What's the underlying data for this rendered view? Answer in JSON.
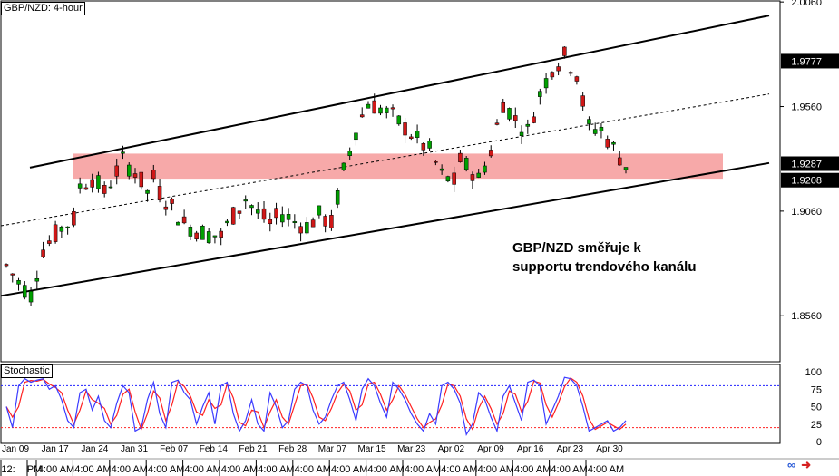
{
  "chart_title": "GBP/NZD: 4-hour",
  "indicator_title": "Stochastic",
  "annotation": {
    "line1": "GBP/NZD směřuje k",
    "line2": "supportu trendového kanálu"
  },
  "colors": {
    "bull_candle": "#00a000",
    "bear_candle": "#d01818",
    "support_zone": "#f7a9a9",
    "channel_line": "#000000",
    "stoch_main": "#3b3bff",
    "stoch_signal": "#ff2020",
    "level_80": "#2020ff",
    "level_20": "#ff2020",
    "price_label_bg": "#000000",
    "price_label_text": "#ffffff"
  },
  "chart_data": [
    {
      "type": "candlestick",
      "title": "GBP/NZD: 4-hour",
      "price_scale": {
        "ylim": [
          1.834,
          2.0065
        ],
        "tick_labels": [
          "2.0060",
          "1.9560",
          "1.9060",
          "1.8560"
        ],
        "highlighted_levels": [
          {
            "value": 1.9777,
            "label": "1.9777"
          },
          {
            "value": 1.9287,
            "label": "1.9287"
          },
          {
            "value": 1.9208,
            "label": "1.9208"
          }
        ]
      },
      "date_labels": [
        "Jan 09",
        "Jan 17",
        "Jan 24",
        "Jan 31",
        "Feb 07",
        "Feb 14",
        "Feb 21",
        "Feb 28",
        "Mar 07",
        "Mar 15",
        "Mar 23",
        "Apr 02",
        "Apr 09",
        "Apr 16",
        "Apr 23",
        "Apr 30"
      ],
      "time_labels": [
        "12:",
        "PM",
        "4:00 AM",
        "4:00 AM",
        "4:00 AM",
        "4:00 AM",
        "4:00 AM",
        "4:00 AM",
        "4:00 AM",
        "4:00 AM",
        "4:00 AM",
        "4:00 AM",
        "4:00 AM",
        "4:00 AM",
        "4:00 AM",
        "4:00 AM",
        "4:00 AM",
        "4:00 AM"
      ],
      "support_zone": {
        "from": 1.9215,
        "to": 1.9335
      },
      "channel": {
        "x_range": [
          1,
          118
        ],
        "upper": [
          1.9268,
          1.9995
        ],
        "mid": [
          1.899,
          1.962
        ],
        "lower": [
          1.8655,
          1.929
        ]
      },
      "close_path": [
        [
          1,
          1.88
        ],
        [
          3,
          1.872
        ],
        [
          5,
          1.866
        ],
        [
          7,
          1.888
        ],
        [
          10,
          1.898
        ],
        [
          12,
          1.902
        ],
        [
          13,
          1.918
        ],
        [
          15,
          1.922
        ],
        [
          17,
          1.915
        ],
        [
          20,
          1.93
        ],
        [
          22,
          1.925
        ],
        [
          24,
          1.915
        ],
        [
          25,
          1.922
        ],
        [
          26,
          1.915
        ],
        [
          28,
          1.908
        ],
        [
          30,
          1.9
        ],
        [
          32,
          1.897
        ],
        [
          34,
          1.895
        ],
        [
          36,
          1.894
        ],
        [
          38,
          1.904
        ],
        [
          40,
          1.912
        ],
        [
          42,
          1.905
        ],
        [
          44,
          1.9
        ],
        [
          46,
          1.905
        ],
        [
          48,
          1.901
        ],
        [
          50,
          1.899
        ],
        [
          52,
          1.904
        ],
        [
          54,
          1.9
        ],
        [
          56,
          1.925
        ],
        [
          58,
          1.945
        ],
        [
          60,
          1.958
        ],
        [
          62,
          1.955
        ],
        [
          64,
          1.951
        ],
        [
          66,
          1.946
        ],
        [
          68,
          1.94
        ],
        [
          70,
          1.935
        ],
        [
          72,
          1.923
        ],
        [
          74,
          1.92
        ],
        [
          75,
          1.93
        ],
        [
          77,
          1.925
        ],
        [
          78,
          1.921
        ],
        [
          80,
          1.935
        ],
        [
          82,
          1.958
        ],
        [
          84,
          1.95
        ],
        [
          86,
          1.944
        ],
        [
          88,
          1.962
        ],
        [
          90,
          1.975
        ],
        [
          92,
          1.98
        ],
        [
          94,
          1.972
        ],
        [
          95,
          1.958
        ],
        [
          96,
          1.946
        ],
        [
          98,
          1.945
        ],
        [
          100,
          1.936
        ],
        [
          102,
          1.928
        ]
      ],
      "series_count": 102
    },
    {
      "type": "line",
      "title": "Stochastic",
      "ylim": [
        0,
        100
      ],
      "tick_labels": [
        "100",
        "75",
        "50",
        "25",
        "0"
      ],
      "levels": [
        80,
        20
      ],
      "series": [
        {
          "values": [
            50,
            20,
            80,
            90,
            85,
            88,
            90,
            75,
            80,
            60,
            30,
            20,
            70,
            75,
            45,
            65,
            30,
            20,
            55,
            80,
            70,
            15,
            20,
            60,
            85,
            40,
            20,
            85,
            88,
            70,
            60,
            25,
            50,
            70,
            25,
            80,
            85,
            40,
            15,
            30,
            60,
            25,
            15,
            70,
            50,
            20,
            30,
            75,
            85,
            80,
            45,
            25,
            35,
            60,
            80,
            85,
            60,
            30,
            75,
            90,
            80,
            55,
            35,
            85,
            75,
            60,
            40,
            25,
            15,
            40,
            25,
            80,
            85,
            75,
            55,
            10,
            25,
            70,
            60,
            35,
            15,
            65,
            80,
            55,
            30,
            85,
            88,
            80,
            25,
            45,
            65,
            92,
            90,
            80,
            50,
            15,
            20,
            25,
            30,
            15,
            20,
            30
          ]
        }
      ]
    }
  ]
}
